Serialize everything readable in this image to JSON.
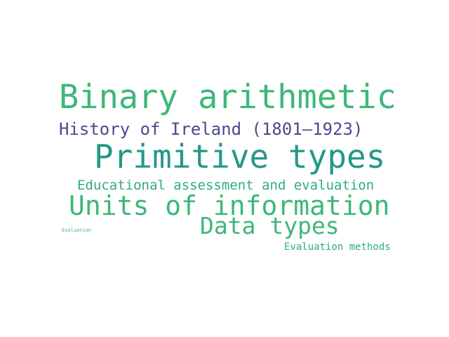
{
  "words": [
    {
      "text": "Binary arithmetic",
      "color": "#3cb878"
    },
    {
      "text": "History of Ireland (1801–1923)",
      "color": "#4a4a8c"
    },
    {
      "text": "Primitive types",
      "color": "#249889"
    },
    {
      "text": "Educational assessment and evaluation",
      "color": "#31a88a"
    },
    {
      "text": "Units of information",
      "color": "#3cb878"
    },
    {
      "text": "Data types",
      "color": "#3cb878"
    },
    {
      "text": "Evaluation",
      "color": "#3cb878"
    },
    {
      "text": "Evaluation methods",
      "color": "#31a88a"
    }
  ]
}
